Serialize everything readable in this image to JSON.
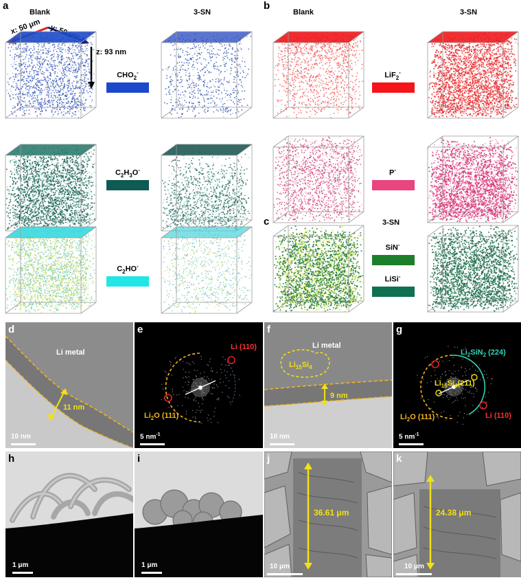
{
  "panels": {
    "a": "a",
    "b": "b",
    "c": "c",
    "d": "d",
    "e": "e",
    "f": "f",
    "g": "g",
    "h": "h",
    "i": "i",
    "j": "j",
    "k": "k"
  },
  "headers": {
    "a_blank": "Blank",
    "a_3sn": "3-SN",
    "b_blank": "Blank",
    "b_3sn": "3-SN",
    "c_3sn": "3-SN"
  },
  "axes": {
    "x": "x: 50 μm",
    "y": "y: 50 μm",
    "z": "z: 93 nm"
  },
  "species": {
    "cho2": {
      "main": "CHO",
      "sub": "2",
      "sup": "-",
      "color": "#1b49c9"
    },
    "c2h3o": {
      "pre": "C",
      "s1": "2",
      "mid": "H",
      "s2": "3",
      "post": "O",
      "sup": "-",
      "color": "#0f5a52"
    },
    "c2ho": {
      "pre": "C",
      "s1": "2",
      "post": "HO",
      "sup": "-",
      "color": "#22e5e5"
    },
    "lif2": {
      "main": "LiF",
      "sub": "2",
      "sup": "-",
      "color": "#f4141a"
    },
    "p": {
      "main": "P",
      "sup": "-",
      "color": "#e84581"
    },
    "sin": {
      "main": "SiN",
      "sup": "-",
      "color": "#1d7f2b"
    },
    "lisi": {
      "main": "LiSi",
      "sup": "-",
      "color": "#0f7052"
    }
  },
  "tem": {
    "d": {
      "title": "Li metal",
      "thickness": "11 nm",
      "scale": "10 nm"
    },
    "e": {
      "li": "Li (110)",
      "li2o": "Li",
      "li2o_sub": "2",
      "li2o_rest": "O (111)",
      "scale": "5 nm",
      "scale_sup": "-1"
    },
    "f": {
      "title": "Li metal",
      "phase": "Li",
      "phase_s1": "15",
      "phase_mid": "Si",
      "phase_s2": "4",
      "thickness": "9 nm",
      "scale": "10 nm"
    },
    "g": {
      "li2sin2": "Li",
      "li2sin2_s1": "2",
      "li2sin2_mid": "SiN",
      "li2sin2_s2": "2",
      "li2sin2_rest": " (224)",
      "lisi": "Li",
      "lisi_s1": "15",
      "lisi_mid": "Si",
      "lisi_s2": "4",
      "lisi_rest": "(211)",
      "li2o": "Li",
      "li2o_sub": "2",
      "li2o_rest": "O (111)",
      "li": "Li (110)",
      "scale": "5 nm",
      "scale_sup": "-1"
    }
  },
  "sem": {
    "h": {
      "scale": "1 μm"
    },
    "i": {
      "scale": "1 μm"
    },
    "j": {
      "thickness": "36.61 μm",
      "scale": "10 μm"
    },
    "k": {
      "thickness": "24.38 μm",
      "scale": "10 μm"
    }
  }
}
